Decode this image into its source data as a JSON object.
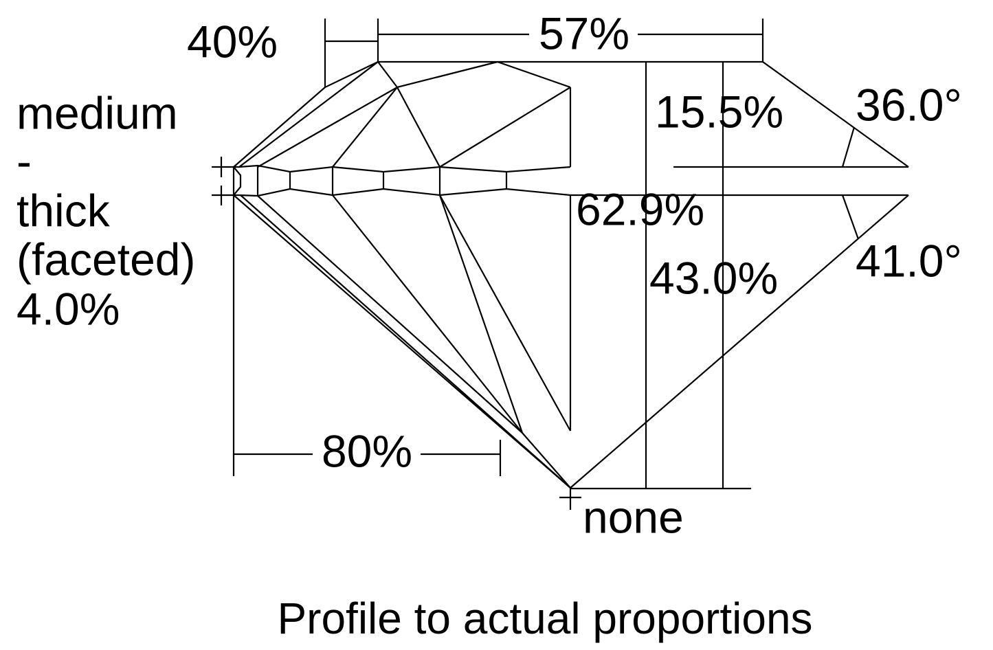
{
  "labels": {
    "star_length": "40%",
    "table": "57%",
    "girdle": [
      "medium",
      "-",
      "thick",
      "(faceted)",
      "4.0%"
    ],
    "crown_height": "15.5%",
    "crown_angle": "36.0°",
    "total_depth": "62.9%",
    "pavilion_depth": "43.0%",
    "pavilion_angle": "41.0°",
    "lower_half": "80%",
    "culet": "none"
  },
  "caption": "Profile to actual proportions"
}
